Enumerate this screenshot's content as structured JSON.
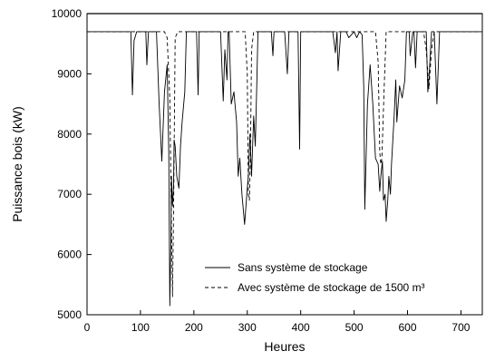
{
  "chart_data": {
    "type": "line",
    "xlabel": "Heures",
    "ylabel": "Puissance bois (kW)",
    "xlim": [
      0,
      740
    ],
    "ylim": [
      5000,
      10000
    ],
    "xticks": [
      0,
      100,
      200,
      300,
      400,
      500,
      600,
      700
    ],
    "yticks": [
      5000,
      6000,
      7000,
      8000,
      9000,
      10000
    ],
    "legend_position": "bottom-right",
    "series": [
      {
        "name": "Sans système de stockage",
        "style": "solid",
        "color": "#000000",
        "x": [
          0,
          82,
          85,
          88,
          93,
          100,
          110,
          112,
          115,
          120,
          130,
          135,
          140,
          145,
          150,
          153,
          155,
          157,
          158,
          160,
          162,
          163,
          165,
          168,
          172,
          175,
          178,
          183,
          186,
          190,
          195,
          200,
          205,
          208,
          210,
          220,
          240,
          250,
          255,
          258,
          262,
          264,
          266,
          270,
          275,
          280,
          283,
          286,
          290,
          295,
          300,
          302,
          305,
          308,
          312,
          315,
          318,
          320,
          322,
          325,
          330,
          340,
          345,
          348,
          350,
          360,
          370,
          375,
          378,
          385,
          395,
          398,
          400,
          405,
          430,
          460,
          465,
          468,
          470,
          475,
          480,
          485,
          490,
          500,
          505,
          510,
          515,
          518,
          520,
          525,
          530,
          535,
          540,
          545,
          548,
          550,
          553,
          555,
          558,
          560,
          563,
          565,
          568,
          570,
          575,
          578,
          580,
          585,
          590,
          595,
          598,
          600,
          603,
          605,
          610,
          612,
          615,
          618,
          620,
          625,
          630,
          635,
          638,
          640,
          645,
          650,
          655,
          660,
          662,
          665,
          670,
          680,
          700,
          740
        ],
        "y": [
          9700,
          9700,
          8650,
          9550,
          9700,
          9700,
          9700,
          9150,
          9700,
          9700,
          9700,
          8500,
          7550,
          8700,
          9150,
          7700,
          5150,
          6250,
          7300,
          6800,
          7150,
          7900,
          7800,
          7300,
          7100,
          7800,
          8200,
          8700,
          9700,
          9700,
          9700,
          9700,
          9700,
          8650,
          9700,
          9700,
          9700,
          9700,
          8550,
          9400,
          8900,
          9700,
          9700,
          8500,
          8700,
          8200,
          7300,
          7600,
          7000,
          6500,
          7100,
          7300,
          8000,
          7300,
          8300,
          7800,
          8900,
          9700,
          9700,
          9700,
          9700,
          9700,
          9700,
          9300,
          9700,
          9700,
          9700,
          9000,
          9700,
          9700,
          9700,
          7750,
          9700,
          9700,
          9700,
          9700,
          9350,
          9700,
          9050,
          9700,
          9700,
          9700,
          9600,
          9700,
          9600,
          9700,
          9650,
          8800,
          6750,
          8500,
          9150,
          8500,
          7600,
          7500,
          7050,
          7300,
          7550,
          6900,
          7000,
          6550,
          6900,
          7300,
          7000,
          7500,
          8300,
          8900,
          8200,
          8800,
          8600,
          8900,
          9700,
          9700,
          9700,
          9300,
          9700,
          9700,
          9100,
          9700,
          9700,
          9700,
          9700,
          9700,
          8700,
          8900,
          9700,
          9700,
          8500,
          9700,
          9700,
          9700,
          9700,
          9700,
          9700,
          9700
        ]
      },
      {
        "name": "Avec système de stockage de 1500 m³",
        "style": "dashed",
        "color": "#000000",
        "x": [
          0,
          145,
          150,
          155,
          158,
          160,
          162,
          165,
          170,
          200,
          296,
          300,
          302,
          304,
          306,
          308,
          312,
          500,
          540,
          545,
          548,
          550,
          552,
          556,
          560,
          630,
          635,
          640,
          645,
          650,
          740
        ],
        "y": [
          9700,
          9700,
          9600,
          8600,
          6500,
          5300,
          6700,
          9600,
          9700,
          9700,
          9700,
          9000,
          7000,
          6900,
          7700,
          9400,
          9700,
          9700,
          9700,
          9200,
          7700,
          7500,
          7600,
          8700,
          9700,
          9700,
          9400,
          8750,
          9400,
          9700,
          9700
        ]
      }
    ],
    "hline": 10000
  }
}
